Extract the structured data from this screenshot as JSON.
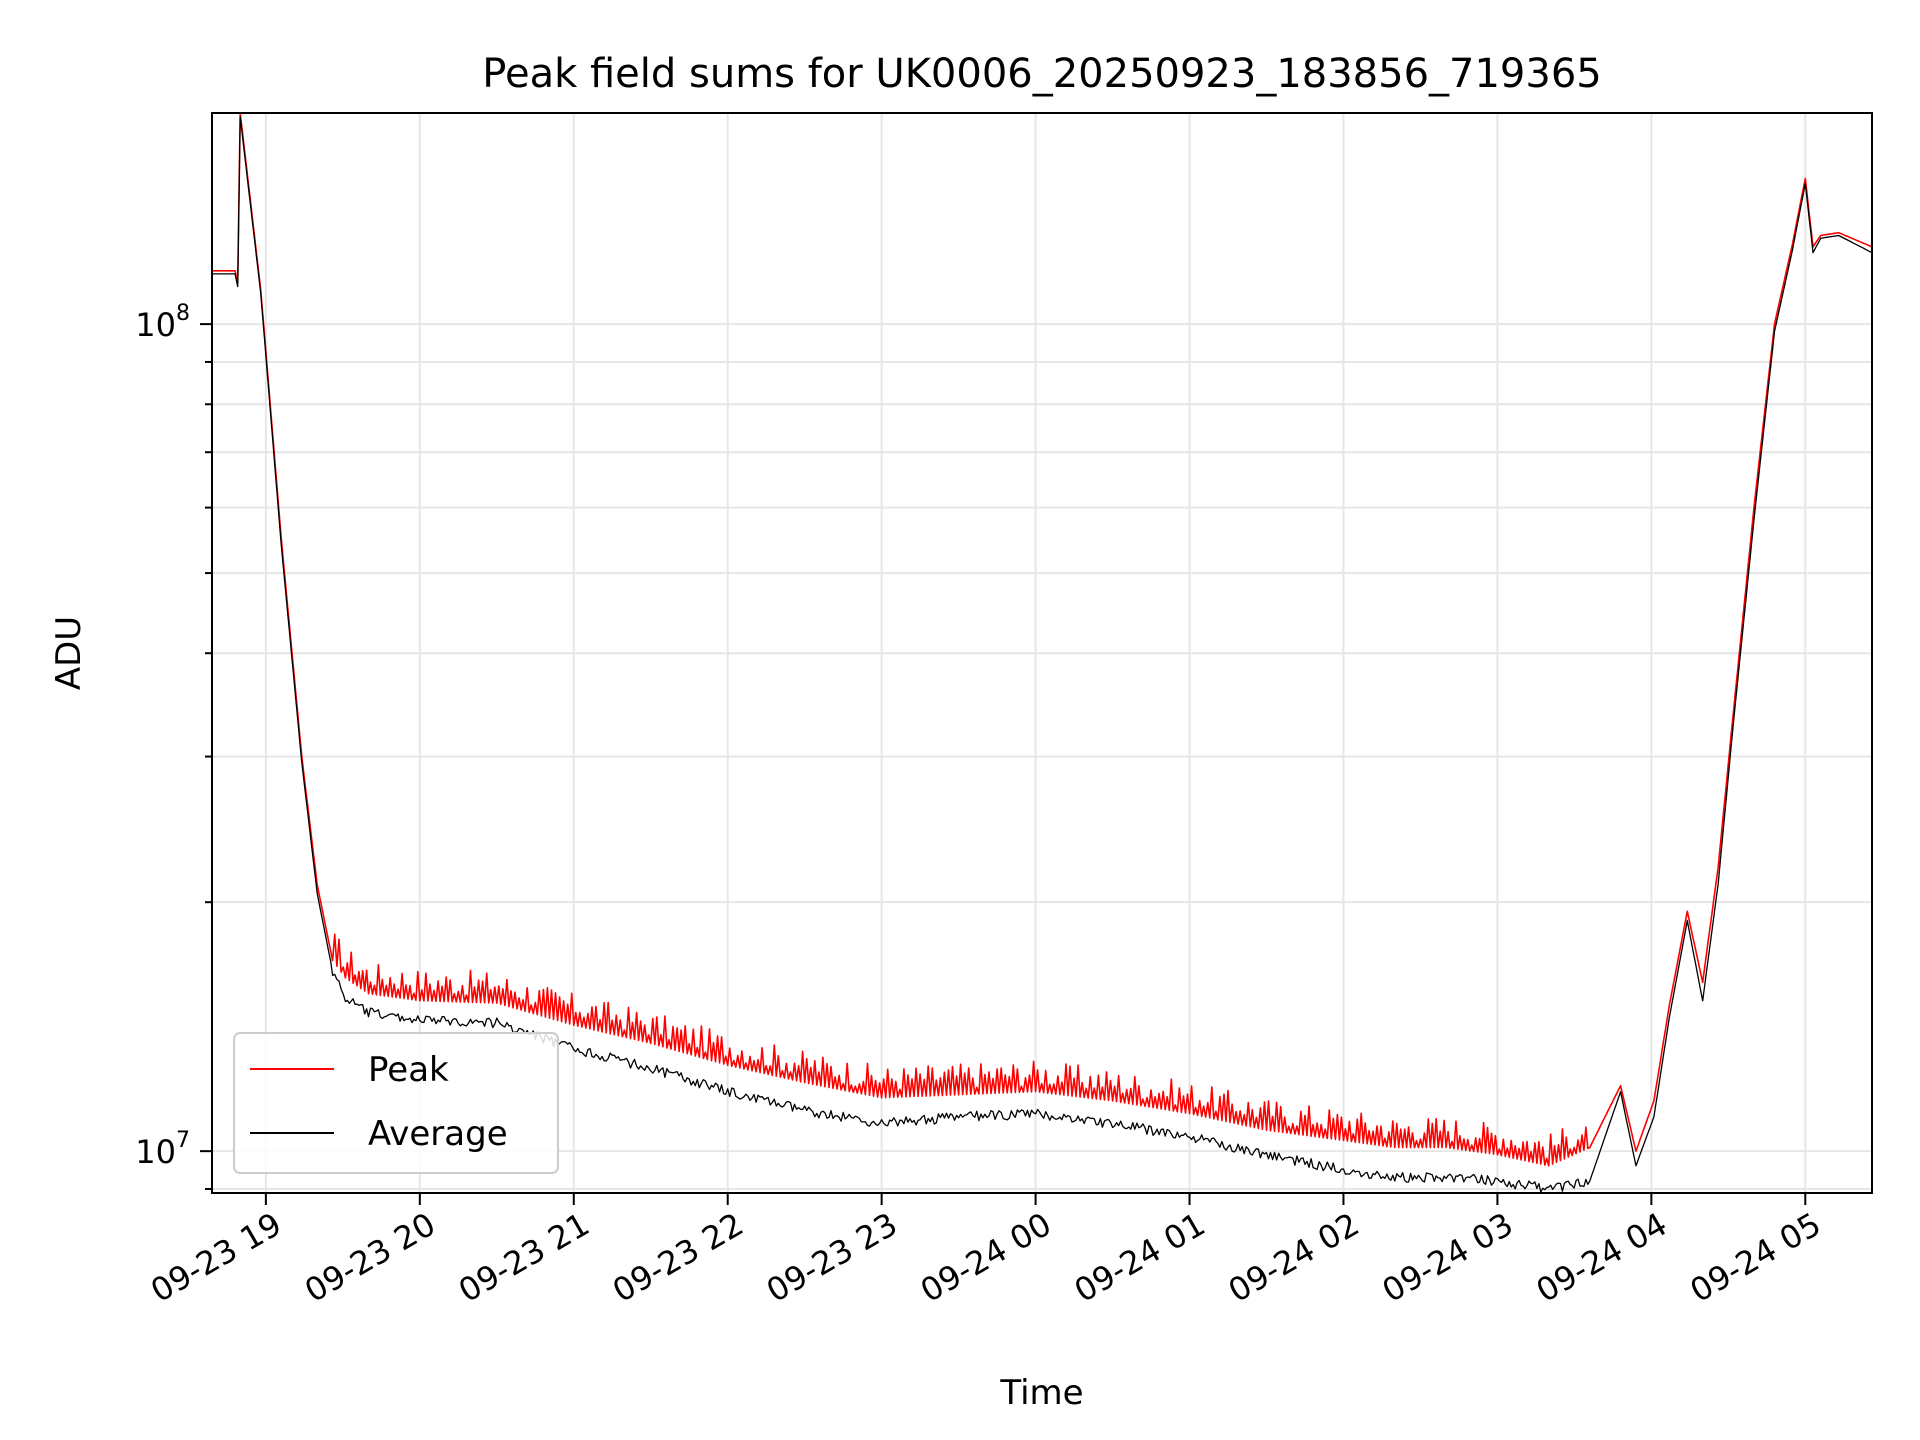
{
  "chart_data": {
    "type": "line",
    "title": "Peak field sums for UK0006_20250923_183856_719365",
    "xlabel": "Time",
    "ylabel": "ADU",
    "yscale": "log",
    "xlim": [
      "2025-09-23 18:39",
      "2025-09-24 05:26"
    ],
    "ylim": [
      8900000,
      180000000
    ],
    "grid": true,
    "legend_position": "lower-left",
    "x_ticks": [
      "09-23 19",
      "09-23 20",
      "09-23 21",
      "09-23 22",
      "09-23 23",
      "09-24 00",
      "09-24 01",
      "09-24 02",
      "09-24 03",
      "09-24 04",
      "09-24 05"
    ],
    "y_ticks": [
      {
        "base": "10",
        "exp": "7",
        "value": 10000000
      },
      {
        "base": "10",
        "exp": "8",
        "value": 100000000
      }
    ],
    "x": [
      "2025-09-23 18:39",
      "2025-09-23 18:48",
      "2025-09-23 18:49",
      "2025-09-23 18:50",
      "2025-09-23 18:58",
      "2025-09-23 19:06",
      "2025-09-23 19:14",
      "2025-09-23 19:20",
      "2025-09-23 19:26",
      "2025-09-23 19:31",
      "2025-09-23 19:40",
      "2025-09-23 20:00",
      "2025-09-23 20:30",
      "2025-09-23 21:00",
      "2025-09-23 21:30",
      "2025-09-23 22:00",
      "2025-09-23 22:30",
      "2025-09-23 23:00",
      "2025-09-23 23:30",
      "2025-09-24 00:00",
      "2025-09-24 00:30",
      "2025-09-24 01:00",
      "2025-09-24 01:30",
      "2025-09-24 02:00",
      "2025-09-24 02:20",
      "2025-09-24 02:40",
      "2025-09-24 03:00",
      "2025-09-24 03:20",
      "2025-09-24 03:36",
      "2025-09-24 03:48",
      "2025-09-24 03:54",
      "2025-09-24 04:01",
      "2025-09-24 04:07",
      "2025-09-24 04:14",
      "2025-09-24 04:20",
      "2025-09-24 04:26",
      "2025-09-24 04:32",
      "2025-09-24 04:40",
      "2025-09-24 04:48",
      "2025-09-24 04:55",
      "2025-09-24 05:00",
      "2025-09-24 05:03",
      "2025-09-24 05:06",
      "2025-09-24 05:13",
      "2025-09-24 05:26"
    ],
    "series": [
      {
        "name": "Peak",
        "color": "#ff0000",
        "values": [
          116000000,
          116000000,
          112000000,
          180000000,
          110000000,
          55000000,
          30000000,
          21000000,
          17000000,
          16200000,
          15500000,
          15200000,
          15100000,
          14200000,
          13500000,
          12700000,
          12100000,
          11600000,
          11700000,
          11800000,
          11500000,
          11100000,
          10600000,
          10300000,
          10100000,
          10100000,
          9900000,
          9600000,
          10100000,
          12000000,
          10000000,
          11500000,
          15000000,
          19500000,
          16000000,
          22000000,
          34000000,
          60000000,
          100000000,
          125000000,
          150000000,
          124000000,
          128000000,
          129000000,
          124000000
        ]
      },
      {
        "name": "Average",
        "color": "#000000",
        "values": [
          115000000,
          115000000,
          111000000,
          178000000,
          109000000,
          54000000,
          29500000,
          20500000,
          16500000,
          15300000,
          14700000,
          14400000,
          14300000,
          13300000,
          12600000,
          11800000,
          11200000,
          10800000,
          11000000,
          11100000,
          10800000,
          10400000,
          9900000,
          9500000,
          9300000,
          9300000,
          9200000,
          9000000,
          9200000,
          11800000,
          9600000,
          11000000,
          14500000,
          19000000,
          15200000,
          21000000,
          33000000,
          58000000,
          98000000,
          123000000,
          148000000,
          122000000,
          127000000,
          128000000,
          122000000
        ]
      }
    ]
  }
}
